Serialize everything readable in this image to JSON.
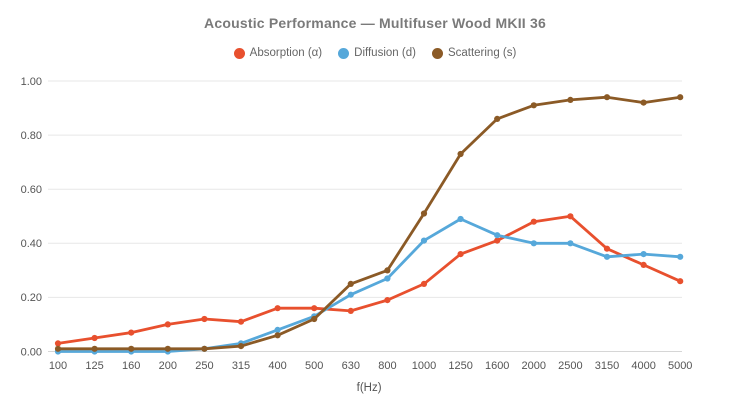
{
  "title": "Acoustic Performance — Multifuser Wood MKII 36",
  "chart_data": {
    "type": "line",
    "title": "Acoustic Performance — Multifuser Wood MKII 36",
    "xlabel": "f(Hz)",
    "ylabel": "",
    "ylim": [
      0,
      1.0
    ],
    "y_tick_step": 0.2,
    "y_tick_labels": [
      "0.00",
      "0.20",
      "0.40",
      "0.60",
      "0.80",
      "1.00"
    ],
    "grid": "horizontal",
    "legend_position": "top-center",
    "categories": [
      "100",
      "125",
      "160",
      "200",
      "250",
      "315",
      "400",
      "500",
      "630",
      "800",
      "1000",
      "1250",
      "1600",
      "2000",
      "2500",
      "3150",
      "4000",
      "5000"
    ],
    "series": [
      {
        "name": "Absorption (α)",
        "color": "#e8502e",
        "values": [
          0.03,
          0.05,
          0.07,
          0.1,
          0.12,
          0.11,
          0.16,
          0.16,
          0.15,
          0.19,
          0.25,
          0.36,
          0.41,
          0.48,
          0.5,
          0.38,
          0.32,
          0.26
        ]
      },
      {
        "name": "Diffusion (d)",
        "color": "#56a8da",
        "values": [
          0.0,
          0.0,
          0.0,
          0.0,
          0.01,
          0.03,
          0.08,
          0.13,
          0.21,
          0.27,
          0.41,
          0.49,
          0.43,
          0.4,
          0.4,
          0.35,
          0.36,
          0.35
        ]
      },
      {
        "name": "Scattering (s)",
        "color": "#8b5a26",
        "values": [
          0.01,
          0.01,
          0.01,
          0.01,
          0.01,
          0.02,
          0.06,
          0.12,
          0.25,
          0.3,
          0.51,
          0.73,
          0.86,
          0.91,
          0.93,
          0.94,
          0.92,
          0.94
        ]
      }
    ]
  },
  "colors": {
    "background": "#ffffff",
    "title_text": "#7a7a7a",
    "legend_text": "#666666",
    "tick_text": "#555555",
    "gridline": "#e7e7e7",
    "zero_line": "#d6d6d6"
  }
}
